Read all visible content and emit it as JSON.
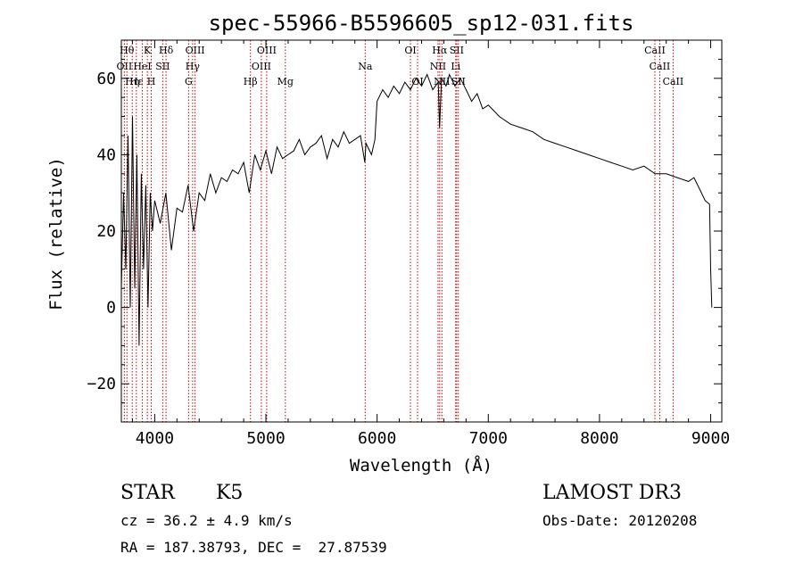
{
  "chart_data": {
    "type": "line",
    "title": "spec-55966-B5596605_sp12-031.fits",
    "xlabel": "Wavelength (Å)",
    "ylabel": "Flux (relative)",
    "xlim": [
      3700,
      9100
    ],
    "ylim": [
      -30,
      70
    ],
    "xticks": [
      4000,
      5000,
      6000,
      7000,
      8000,
      9000
    ],
    "yticks": [
      -20,
      0,
      20,
      40,
      60
    ],
    "grid": false,
    "series": [
      {
        "name": "flux",
        "x": [
          3700,
          3720,
          3740,
          3760,
          3780,
          3800,
          3820,
          3840,
          3860,
          3880,
          3900,
          3920,
          3940,
          3960,
          3980,
          4000,
          4050,
          4100,
          4150,
          4200,
          4250,
          4300,
          4350,
          4400,
          4450,
          4500,
          4550,
          4600,
          4650,
          4700,
          4750,
          4800,
          4850,
          4900,
          4950,
          5000,
          5050,
          5100,
          5150,
          5200,
          5250,
          5300,
          5350,
          5400,
          5450,
          5500,
          5550,
          5600,
          5650,
          5700,
          5750,
          5800,
          5850,
          5890,
          5900,
          5950,
          5980,
          6000,
          6050,
          6100,
          6150,
          6200,
          6250,
          6300,
          6350,
          6400,
          6450,
          6500,
          6550,
          6562,
          6580,
          6620,
          6650,
          6700,
          6750,
          6800,
          6850,
          6900,
          6950,
          7000,
          7100,
          7200,
          7300,
          7400,
          7500,
          7600,
          7700,
          7800,
          7900,
          8000,
          8100,
          8200,
          8300,
          8400,
          8500,
          8600,
          8700,
          8800,
          8850,
          8900,
          8950,
          8990,
          9000,
          9010
        ],
        "y": [
          5,
          30,
          10,
          45,
          0,
          50,
          5,
          40,
          -10,
          35,
          10,
          32,
          0,
          30,
          20,
          28,
          22,
          30,
          15,
          26,
          25,
          32,
          20,
          30,
          28,
          35,
          30,
          34,
          33,
          36,
          35,
          38,
          30,
          40,
          36,
          41,
          35,
          42,
          39,
          40,
          41,
          44,
          40,
          42,
          43,
          45,
          39,
          44,
          42,
          46,
          43,
          44,
          45,
          38,
          43,
          40,
          44,
          54,
          57,
          55,
          58,
          56,
          59,
          57,
          60,
          58,
          61,
          57,
          59,
          47,
          60,
          58,
          61,
          58,
          60,
          57,
          54,
          56,
          52,
          53,
          50,
          48,
          47,
          46,
          44,
          43,
          42,
          41,
          40,
          39,
          38,
          37,
          36,
          37,
          35,
          35,
          34,
          33,
          34,
          31,
          28,
          27,
          10,
          0
        ]
      }
    ],
    "lines": [
      {
        "label": "OII",
        "x": 3727,
        "row": 2
      },
      {
        "label": "Hθ",
        "x": 3750,
        "row": 1
      },
      {
        "label": "Hη",
        "x": 3798,
        "row": 3
      },
      {
        "label": "Hε",
        "x": 3835,
        "row": 3
      },
      {
        "label": "HeI",
        "x": 3889,
        "row": 2
      },
      {
        "label": "K",
        "x": 3934,
        "row": 1
      },
      {
        "label": "H",
        "x": 3969,
        "row": 3
      },
      {
        "label": "SII",
        "x": 4072,
        "row": 2
      },
      {
        "label": "Hδ",
        "x": 4102,
        "row": 1
      },
      {
        "label": "G",
        "x": 4305,
        "row": 3
      },
      {
        "label": "Hγ",
        "x": 4341,
        "row": 2
      },
      {
        "label": "OIII",
        "x": 4363,
        "row": 1
      },
      {
        "label": "Hβ",
        "x": 4861,
        "row": 3
      },
      {
        "label": "OIII",
        "x": 4959,
        "row": 2
      },
      {
        "label": "OIII",
        "x": 5007,
        "row": 1
      },
      {
        "label": "Mg",
        "x": 5175,
        "row": 3
      },
      {
        "label": "Na",
        "x": 5893,
        "row": 2
      },
      {
        "label": "OI",
        "x": 6300,
        "row": 1
      },
      {
        "label": "OI",
        "x": 6364,
        "row": 3
      },
      {
        "label": "NII",
        "x": 6548,
        "row": 2
      },
      {
        "label": "Hα",
        "x": 6563,
        "row": 1
      },
      {
        "label": "NII",
        "x": 6583,
        "row": 3
      },
      {
        "label": "Li",
        "x": 6707,
        "row": 2
      },
      {
        "label": "SII",
        "x": 6716,
        "row": 1
      },
      {
        "label": "SII",
        "x": 6731,
        "row": 3
      },
      {
        "label": "CaII",
        "x": 8498,
        "row": 1
      },
      {
        "label": "CaII",
        "x": 8542,
        "row": 2
      },
      {
        "label": "CaII",
        "x": 8662,
        "row": 3
      }
    ]
  },
  "info": {
    "object_class": "STAR",
    "subclass": "K5",
    "survey": "LAMOST DR3",
    "redshift": "cz = 36.2 ± 4.9 km/s",
    "obs_date": "Obs-Date: 20120208",
    "coords": "RA = 187.38793, DEC =  27.87539"
  }
}
